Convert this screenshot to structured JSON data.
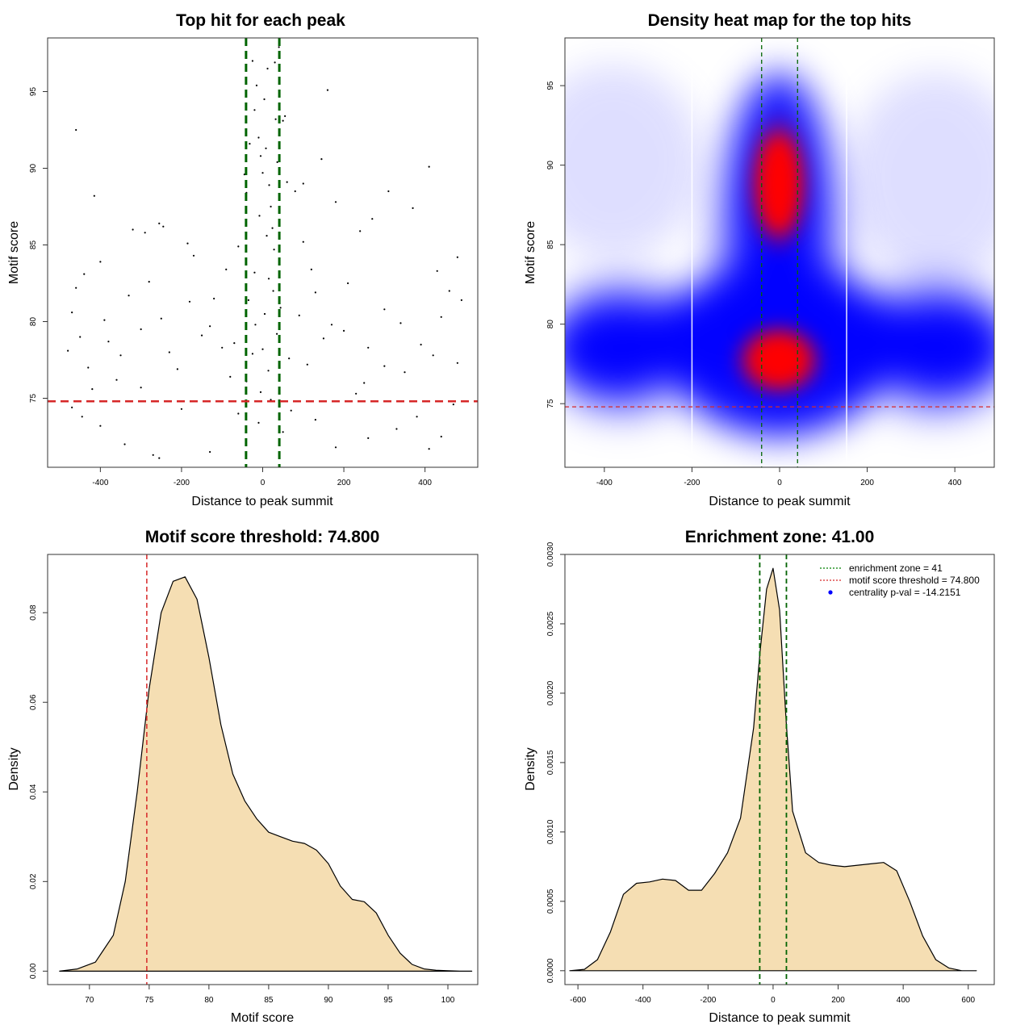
{
  "chart_data": [
    {
      "type": "scatter",
      "title": "Top hit for each peak",
      "xlabel": "Distance to peak summit",
      "ylabel": "Motif score",
      "xlim": [
        -530,
        530
      ],
      "ylim": [
        70.5,
        98.5
      ],
      "xticks": [
        -400,
        -200,
        0,
        200,
        400
      ],
      "yticks": [
        75,
        80,
        85,
        90,
        95
      ],
      "vlines": [
        -41,
        41
      ],
      "hline": 74.8,
      "vline_color": "#006400",
      "hline_color": "#d62728",
      "point_color": "#000000",
      "points": [
        [
          -460,
          92.5
        ],
        [
          -415,
          88.2
        ],
        [
          -255,
          86.4
        ],
        [
          -245,
          86.2
        ],
        [
          -320,
          86.0
        ],
        [
          -290,
          85.8
        ],
        [
          -185,
          85.1
        ],
        [
          -170,
          84.3
        ],
        [
          -400,
          83.9
        ],
        [
          -440,
          83.1
        ],
        [
          -460,
          82.2
        ],
        [
          -330,
          81.7
        ],
        [
          -470,
          80.6
        ],
        [
          -450,
          79.0
        ],
        [
          -380,
          78.7
        ],
        [
          -350,
          77.8
        ],
        [
          -300,
          79.5
        ],
        [
          -250,
          80.2
        ],
        [
          -230,
          78.0
        ],
        [
          -210,
          76.9
        ],
        [
          -420,
          75.6
        ],
        [
          -470,
          74.4
        ],
        [
          -445,
          73.8
        ],
        [
          -400,
          73.2
        ],
        [
          -340,
          72.0
        ],
        [
          -270,
          71.3
        ],
        [
          -255,
          71.1
        ],
        [
          -130,
          71.5
        ],
        [
          -80,
          76.4
        ],
        [
          -60,
          74.0
        ],
        [
          -100,
          78.3
        ],
        [
          -120,
          81.5
        ],
        [
          -150,
          79.1
        ],
        [
          -90,
          83.4
        ],
        [
          -60,
          84.9
        ],
        [
          -45,
          89.6
        ],
        [
          -40,
          88.4
        ],
        [
          -32,
          91.6
        ],
        [
          -25,
          97.0
        ],
        [
          -20,
          93.8
        ],
        [
          -15,
          95.4
        ],
        [
          -10,
          92.0
        ],
        [
          -5,
          90.8
        ],
        [
          0,
          89.7
        ],
        [
          4,
          94.5
        ],
        [
          8,
          91.3
        ],
        [
          12,
          96.5
        ],
        [
          16,
          88.9
        ],
        [
          20,
          87.5
        ],
        [
          24,
          86.1
        ],
        [
          28,
          84.7
        ],
        [
          32,
          93.2
        ],
        [
          36,
          90.4
        ],
        [
          40,
          97.9
        ],
        [
          30,
          96.9
        ],
        [
          10,
          85.6
        ],
        [
          -8,
          86.9
        ],
        [
          -20,
          83.2
        ],
        [
          -35,
          81.4
        ],
        [
          -18,
          79.8
        ],
        [
          0,
          78.2
        ],
        [
          14,
          76.8
        ],
        [
          26,
          82.0
        ],
        [
          44,
          80.9
        ],
        [
          50,
          93.1
        ],
        [
          55,
          93.4
        ],
        [
          60,
          89.1
        ],
        [
          80,
          88.5
        ],
        [
          100,
          85.2
        ],
        [
          120,
          83.4
        ],
        [
          160,
          95.1
        ],
        [
          145,
          90.6
        ],
        [
          100,
          89.0
        ],
        [
          180,
          87.8
        ],
        [
          240,
          85.9
        ],
        [
          270,
          86.7
        ],
        [
          310,
          88.5
        ],
        [
          370,
          87.4
        ],
        [
          410,
          90.1
        ],
        [
          430,
          83.3
        ],
        [
          480,
          84.2
        ],
        [
          460,
          82.0
        ],
        [
          300,
          80.8
        ],
        [
          200,
          79.4
        ],
        [
          150,
          78.9
        ],
        [
          110,
          77.2
        ],
        [
          250,
          76.0
        ],
        [
          350,
          76.7
        ],
        [
          420,
          77.8
        ],
        [
          480,
          77.3
        ],
        [
          70,
          74.2
        ],
        [
          130,
          73.6
        ],
        [
          180,
          71.8
        ],
        [
          260,
          72.4
        ],
        [
          330,
          73.0
        ],
        [
          380,
          73.8
        ],
        [
          410,
          71.7
        ],
        [
          440,
          72.5
        ],
        [
          470,
          74.6
        ],
        [
          230,
          75.3
        ],
        [
          50,
          72.8
        ],
        [
          -10,
          73.4
        ],
        [
          -200,
          74.3
        ],
        [
          -300,
          75.7
        ],
        [
          -360,
          76.2
        ],
        [
          -430,
          77.0
        ],
        [
          -480,
          78.1
        ],
        [
          -390,
          80.1
        ],
        [
          -280,
          82.6
        ],
        [
          -180,
          81.3
        ],
        [
          -130,
          79.7
        ],
        [
          -70,
          78.6
        ],
        [
          -40,
          76.1
        ],
        [
          5,
          80.5
        ],
        [
          15,
          82.8
        ],
        [
          35,
          79.2
        ],
        [
          65,
          77.6
        ],
        [
          90,
          80.4
        ],
        [
          130,
          81.9
        ],
        [
          170,
          79.8
        ],
        [
          210,
          82.5
        ],
        [
          260,
          78.3
        ],
        [
          300,
          77.1
        ],
        [
          340,
          79.9
        ],
        [
          390,
          78.5
        ],
        [
          440,
          80.3
        ],
        [
          490,
          81.4
        ],
        [
          -5,
          75.4
        ],
        [
          20,
          74.9
        ],
        [
          -25,
          77.9
        ]
      ]
    },
    {
      "type": "heatmap",
      "title": "Density heat map for the top hits",
      "xlabel": "Distance to peak summit",
      "ylabel": "Motif score",
      "xlim": [
        -490,
        490
      ],
      "ylim": [
        71,
        98
      ],
      "xticks": [
        -400,
        -200,
        0,
        200,
        400
      ],
      "yticks": [
        75,
        80,
        85,
        90,
        95
      ],
      "vlines": [
        -41,
        41
      ],
      "hline": 74.8,
      "white_vlines": [
        -200,
        153
      ],
      "colors": [
        "#ffffff",
        "#0000ff",
        "#ff0000"
      ]
    },
    {
      "type": "area",
      "title": "Motif score threshold: 74.800",
      "xlabel": "Motif score",
      "ylabel": "Density",
      "xlim": [
        66.5,
        102.5
      ],
      "ylim": [
        -0.003,
        0.093
      ],
      "xticks": [
        70,
        75,
        80,
        85,
        90,
        95,
        100
      ],
      "yticks": [
        0,
        0.02,
        0.04,
        0.06,
        0.08
      ],
      "ytick_labels": [
        "0.00",
        "0.02",
        "0.04",
        "0.06",
        "0.08"
      ],
      "vline": 74.8,
      "vline_color": "#d62728",
      "fill_color": "#f5deb3",
      "x": [
        67.5,
        69,
        70.5,
        72,
        73,
        74,
        75,
        76,
        77,
        78,
        79,
        80,
        81,
        82,
        83,
        84,
        85,
        86,
        87,
        88,
        89,
        90,
        91,
        92,
        93,
        94,
        95,
        96,
        97,
        98,
        99,
        100,
        101,
        102
      ],
      "y": [
        0,
        0.0005,
        0.002,
        0.008,
        0.02,
        0.04,
        0.063,
        0.08,
        0.087,
        0.088,
        0.083,
        0.07,
        0.055,
        0.044,
        0.038,
        0.034,
        0.031,
        0.03,
        0.029,
        0.0285,
        0.027,
        0.024,
        0.019,
        0.016,
        0.0155,
        0.013,
        0.008,
        0.004,
        0.0015,
        0.0005,
        0.0002,
        0.0001,
        0,
        0
      ]
    },
    {
      "type": "area",
      "title": "Enrichment zone: 41.00",
      "xlabel": "Distance to peak summit",
      "ylabel": "Density",
      "xlim": [
        -640,
        680
      ],
      "ylim": [
        -0.0001,
        0.003
      ],
      "xticks": [
        -600,
        -400,
        -200,
        0,
        200,
        400,
        600
      ],
      "yticks": [
        0,
        0.0005,
        0.001,
        0.0015,
        0.002,
        0.0025,
        0.003
      ],
      "ytick_labels": [
        "0.0000",
        "0.0005",
        "0.0010",
        "0.0015",
        "0.0020",
        "0.0025",
        "0.0030"
      ],
      "vlines": [
        -41,
        41
      ],
      "vline_color": "#006400",
      "fill_color": "#f5deb3",
      "x": [
        -625,
        -580,
        -540,
        -500,
        -460,
        -420,
        -380,
        -340,
        -300,
        -260,
        -220,
        -180,
        -140,
        -100,
        -60,
        -40,
        -20,
        0,
        20,
        40,
        60,
        100,
        140,
        180,
        220,
        260,
        300,
        340,
        380,
        420,
        460,
        500,
        540,
        580,
        625
      ],
      "y": [
        0,
        1e-05,
        8e-05,
        0.00028,
        0.00055,
        0.00063,
        0.00064,
        0.00066,
        0.00065,
        0.00058,
        0.00058,
        0.0007,
        0.00085,
        0.0011,
        0.00175,
        0.0023,
        0.00275,
        0.0029,
        0.0026,
        0.0018,
        0.00115,
        0.00085,
        0.00078,
        0.00076,
        0.00075,
        0.00076,
        0.00077,
        0.00078,
        0.00072,
        0.0005,
        0.00025,
        8e-05,
        2e-05,
        0,
        0
      ],
      "legend": [
        {
          "label": "enrichment zone = 41",
          "color": "#008000",
          "kind": "line"
        },
        {
          "label": "motif score threshold = 74.800",
          "color": "#d62728",
          "kind": "line"
        },
        {
          "label": "centrality p-val = -14.2151",
          "color": "#0000ff",
          "kind": "point"
        }
      ]
    }
  ]
}
